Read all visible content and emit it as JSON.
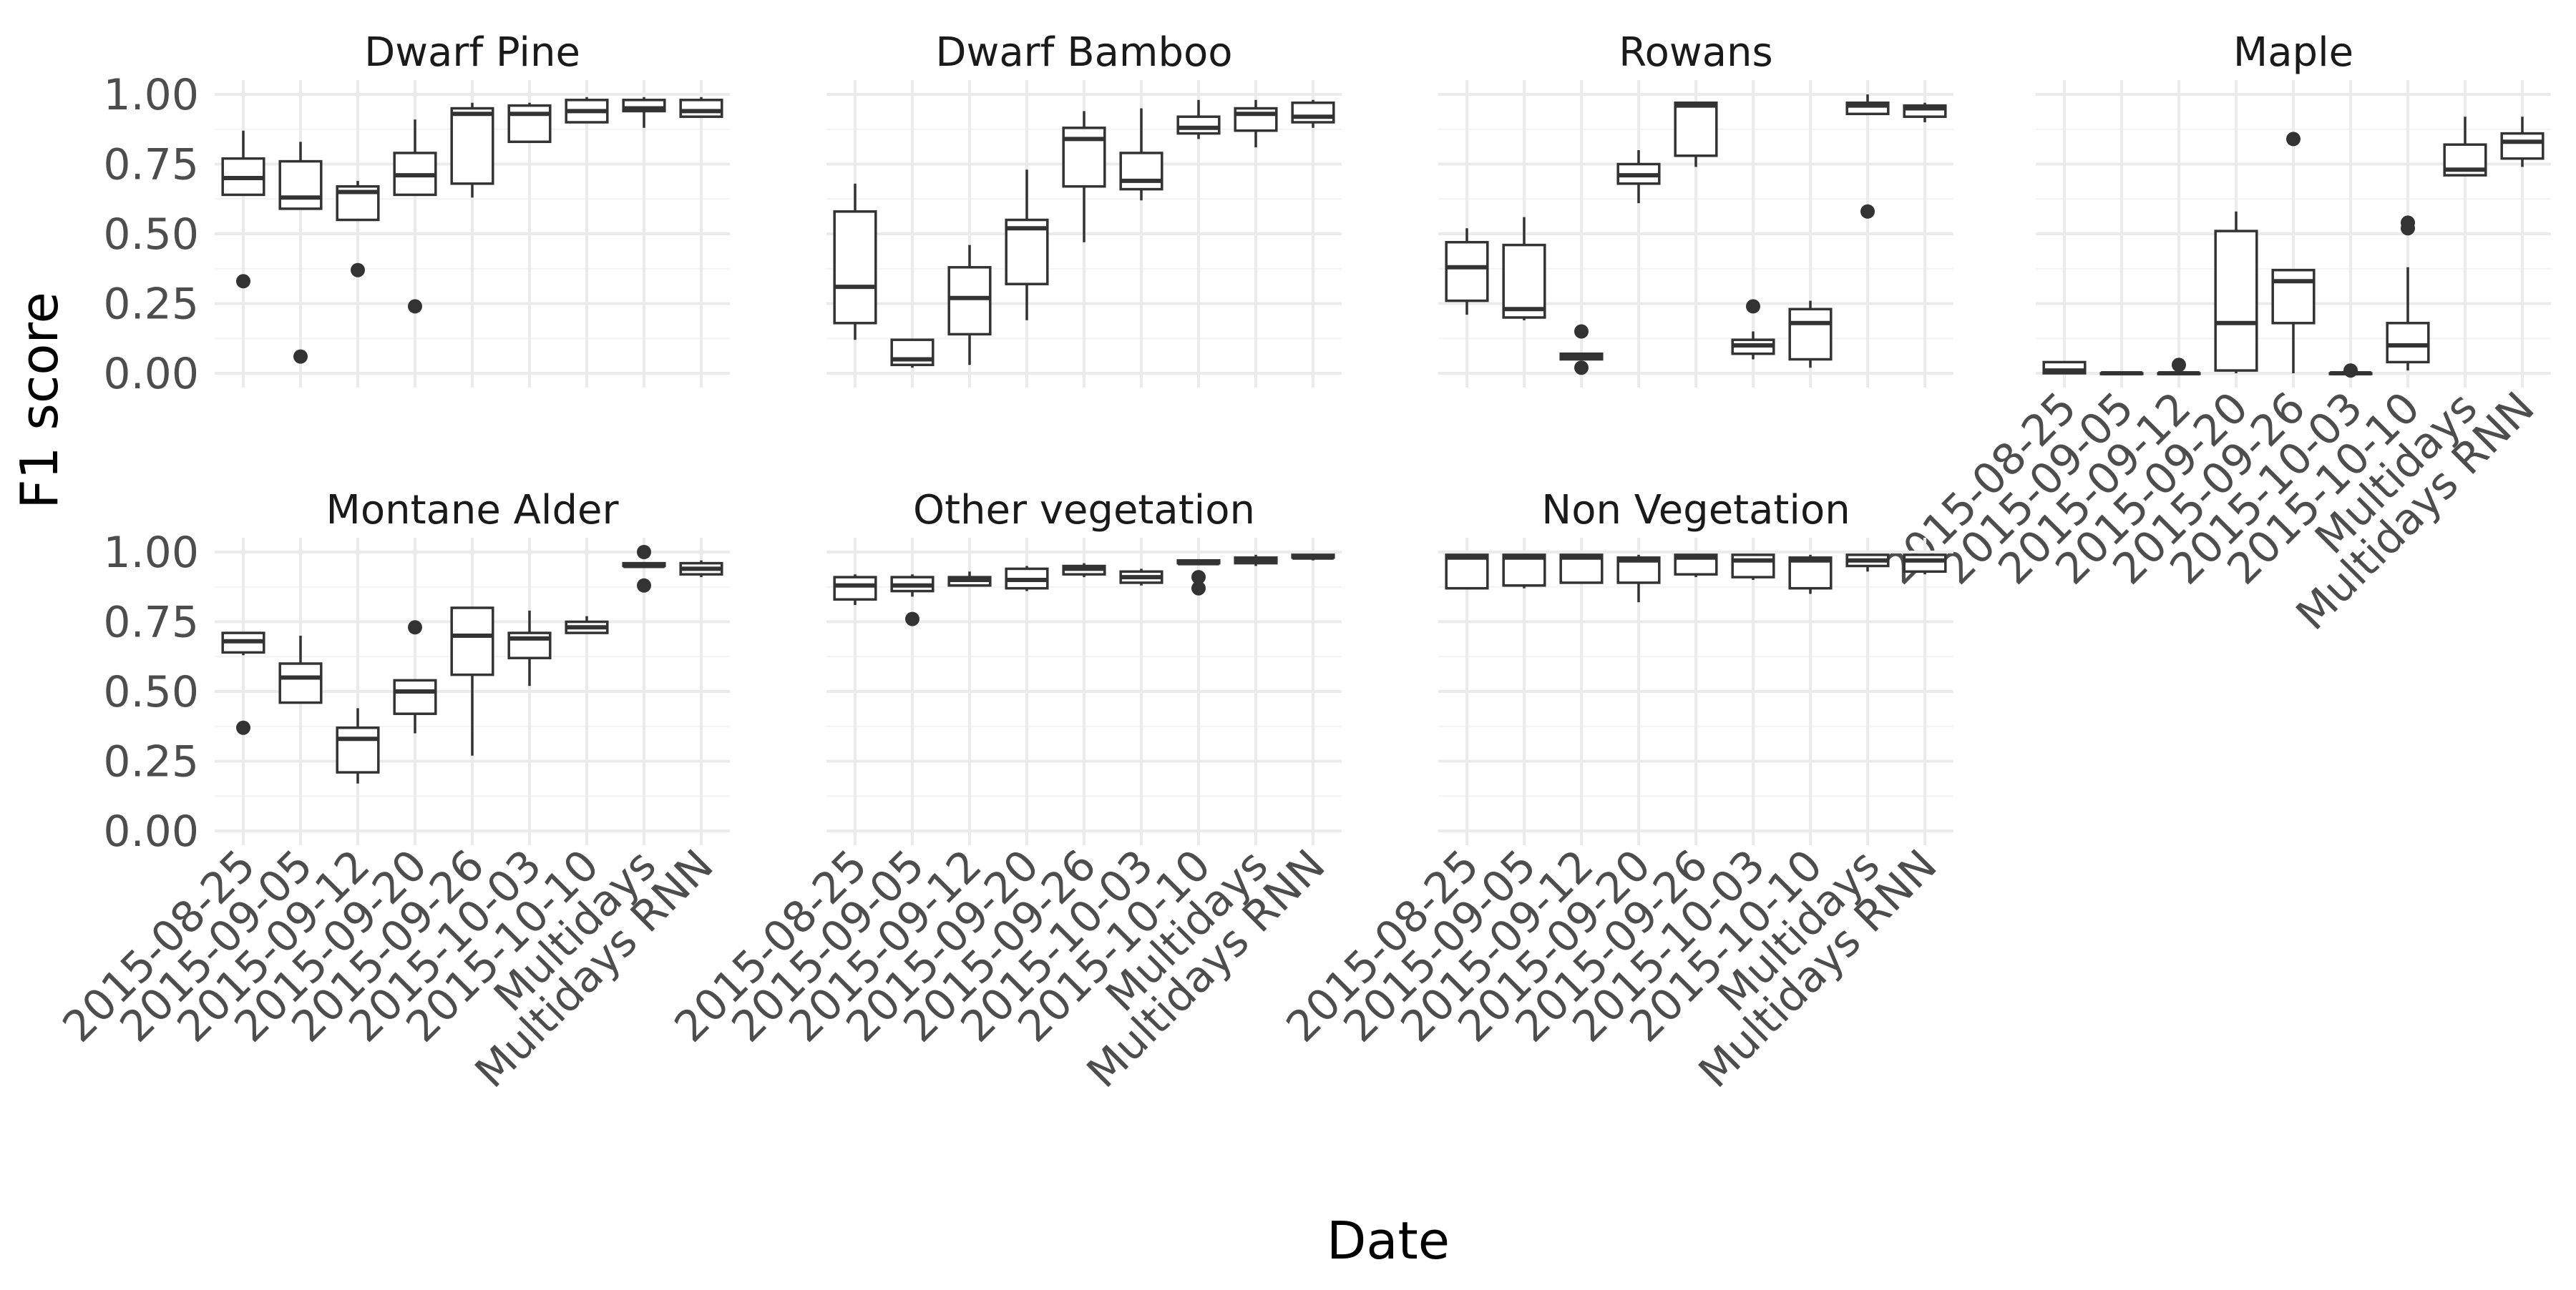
{
  "chart_data": {
    "type": "boxplot",
    "facet_layout": "4 columns x 2 rows",
    "xlabel": "Date",
    "ylabel": "F1 score",
    "ylim": [
      0,
      1
    ],
    "y_ticks": [
      "0.00",
      "0.25",
      "0.50",
      "0.75",
      "1.00"
    ],
    "y_tick_values": [
      0,
      0.25,
      0.5,
      0.75,
      1.0
    ],
    "categories": [
      "2015-08-25",
      "2015-09-05",
      "2015-09-12",
      "2015-09-20",
      "2015-09-26",
      "2015-10-03",
      "2015-10-10",
      "Multidays",
      "Multidays RNN"
    ],
    "grid": true,
    "legend": "none",
    "colors": {
      "box_line": "#333333",
      "box_fill": "#ffffff",
      "grid": "#ebebeb",
      "text": "#4d4d4d"
    },
    "facets": [
      {
        "title": "Dwarf Pine",
        "boxes": [
          {
            "min": 0.64,
            "q1": 0.64,
            "median": 0.7,
            "q3": 0.77,
            "max": 0.87,
            "outliers": [
              0.33
            ]
          },
          {
            "min": 0.59,
            "q1": 0.59,
            "median": 0.63,
            "q3": 0.76,
            "max": 0.83,
            "outliers": [
              0.06
            ]
          },
          {
            "min": 0.55,
            "q1": 0.55,
            "median": 0.65,
            "q3": 0.67,
            "max": 0.69,
            "outliers": [
              0.37
            ]
          },
          {
            "min": 0.64,
            "q1": 0.64,
            "median": 0.71,
            "q3": 0.79,
            "max": 0.91,
            "outliers": [
              0.24
            ]
          },
          {
            "min": 0.63,
            "q1": 0.68,
            "median": 0.93,
            "q3": 0.95,
            "max": 0.97,
            "outliers": []
          },
          {
            "min": 0.83,
            "q1": 0.83,
            "median": 0.93,
            "q3": 0.96,
            "max": 0.97,
            "outliers": []
          },
          {
            "min": 0.9,
            "q1": 0.9,
            "median": 0.94,
            "q3": 0.98,
            "max": 0.99,
            "outliers": []
          },
          {
            "min": 0.88,
            "q1": 0.94,
            "median": 0.95,
            "q3": 0.98,
            "max": 0.99,
            "outliers": []
          },
          {
            "min": 0.92,
            "q1": 0.92,
            "median": 0.94,
            "q3": 0.98,
            "max": 0.99,
            "outliers": []
          }
        ]
      },
      {
        "title": "Dwarf Bamboo",
        "boxes": [
          {
            "min": 0.12,
            "q1": 0.18,
            "median": 0.31,
            "q3": 0.58,
            "max": 0.68,
            "outliers": []
          },
          {
            "min": 0.02,
            "q1": 0.03,
            "median": 0.05,
            "q3": 0.12,
            "max": 0.12,
            "outliers": []
          },
          {
            "min": 0.03,
            "q1": 0.14,
            "median": 0.27,
            "q3": 0.38,
            "max": 0.46,
            "outliers": []
          },
          {
            "min": 0.19,
            "q1": 0.32,
            "median": 0.52,
            "q3": 0.55,
            "max": 0.73,
            "outliers": []
          },
          {
            "min": 0.47,
            "q1": 0.67,
            "median": 0.84,
            "q3": 0.88,
            "max": 0.94,
            "outliers": []
          },
          {
            "min": 0.62,
            "q1": 0.66,
            "median": 0.69,
            "q3": 0.79,
            "max": 0.95,
            "outliers": []
          },
          {
            "min": 0.84,
            "q1": 0.86,
            "median": 0.88,
            "q3": 0.92,
            "max": 0.98,
            "outliers": []
          },
          {
            "min": 0.81,
            "q1": 0.87,
            "median": 0.93,
            "q3": 0.95,
            "max": 0.98,
            "outliers": []
          },
          {
            "min": 0.88,
            "q1": 0.9,
            "median": 0.92,
            "q3": 0.97,
            "max": 0.98,
            "outliers": []
          }
        ]
      },
      {
        "title": "Rowans",
        "boxes": [
          {
            "min": 0.21,
            "q1": 0.26,
            "median": 0.38,
            "q3": 0.47,
            "max": 0.52,
            "outliers": []
          },
          {
            "min": 0.19,
            "q1": 0.2,
            "median": 0.23,
            "q3": 0.46,
            "max": 0.56,
            "outliers": []
          },
          {
            "min": 0.05,
            "q1": 0.05,
            "median": 0.06,
            "q3": 0.07,
            "max": 0.07,
            "outliers": [
              0.15,
              0.02
            ]
          },
          {
            "min": 0.61,
            "q1": 0.68,
            "median": 0.71,
            "q3": 0.75,
            "max": 0.8,
            "outliers": []
          },
          {
            "min": 0.74,
            "q1": 0.78,
            "median": 0.96,
            "q3": 0.97,
            "max": 0.97,
            "outliers": []
          },
          {
            "min": 0.05,
            "q1": 0.07,
            "median": 0.1,
            "q3": 0.12,
            "max": 0.15,
            "outliers": [
              0.24
            ]
          },
          {
            "min": 0.02,
            "q1": 0.05,
            "median": 0.18,
            "q3": 0.23,
            "max": 0.26,
            "outliers": []
          },
          {
            "min": 0.93,
            "q1": 0.93,
            "median": 0.96,
            "q3": 0.97,
            "max": 1.0,
            "outliers": [
              0.58
            ]
          },
          {
            "min": 0.9,
            "q1": 0.92,
            "median": 0.95,
            "q3": 0.96,
            "max": 0.97,
            "outliers": []
          }
        ]
      },
      {
        "title": "Maple",
        "boxes": [
          {
            "min": 0.0,
            "q1": 0.0,
            "median": 0.01,
            "q3": 0.04,
            "max": 0.04,
            "outliers": []
          },
          {
            "min": 0.0,
            "q1": 0.0,
            "median": 0.0,
            "q3": 0.0,
            "max": 0.0,
            "outliers": []
          },
          {
            "min": 0.0,
            "q1": 0.0,
            "median": 0.0,
            "q3": 0.0,
            "max": 0.0,
            "outliers": [
              0.03
            ]
          },
          {
            "min": 0.0,
            "q1": 0.01,
            "median": 0.18,
            "q3": 0.51,
            "max": 0.58,
            "outliers": []
          },
          {
            "min": 0.0,
            "q1": 0.18,
            "median": 0.33,
            "q3": 0.37,
            "max": 0.37,
            "outliers": [
              0.84
            ]
          },
          {
            "min": 0.0,
            "q1": 0.0,
            "median": 0.0,
            "q3": 0.0,
            "max": 0.0,
            "outliers": [
              0.01
            ]
          },
          {
            "min": 0.01,
            "q1": 0.04,
            "median": 0.1,
            "q3": 0.18,
            "max": 0.38,
            "outliers": [
              0.52,
              0.54
            ]
          },
          {
            "min": 0.71,
            "q1": 0.71,
            "median": 0.73,
            "q3": 0.82,
            "max": 0.92,
            "outliers": []
          },
          {
            "min": 0.74,
            "q1": 0.77,
            "median": 0.83,
            "q3": 0.86,
            "max": 0.92,
            "outliers": []
          }
        ]
      },
      {
        "title": "Montane Alder",
        "boxes": [
          {
            "min": 0.63,
            "q1": 0.64,
            "median": 0.68,
            "q3": 0.71,
            "max": 0.71,
            "outliers": [
              0.37
            ]
          },
          {
            "min": 0.46,
            "q1": 0.46,
            "median": 0.55,
            "q3": 0.6,
            "max": 0.7,
            "outliers": []
          },
          {
            "min": 0.17,
            "q1": 0.21,
            "median": 0.33,
            "q3": 0.37,
            "max": 0.44,
            "outliers": []
          },
          {
            "min": 0.35,
            "q1": 0.42,
            "median": 0.5,
            "q3": 0.54,
            "max": 0.54,
            "outliers": [
              0.73
            ]
          },
          {
            "min": 0.27,
            "q1": 0.56,
            "median": 0.7,
            "q3": 0.8,
            "max": 0.8,
            "outliers": []
          },
          {
            "min": 0.52,
            "q1": 0.62,
            "median": 0.69,
            "q3": 0.71,
            "max": 0.79,
            "outliers": []
          },
          {
            "min": 0.71,
            "q1": 0.71,
            "median": 0.73,
            "q3": 0.75,
            "max": 0.77,
            "outliers": []
          },
          {
            "min": 0.95,
            "q1": 0.95,
            "median": 0.95,
            "q3": 0.96,
            "max": 0.96,
            "outliers": [
              0.88,
              1.0
            ]
          },
          {
            "min": 0.91,
            "q1": 0.92,
            "median": 0.94,
            "q3": 0.96,
            "max": 0.97,
            "outliers": []
          }
        ]
      },
      {
        "title": "Other vegetation",
        "boxes": [
          {
            "min": 0.81,
            "q1": 0.83,
            "median": 0.88,
            "q3": 0.91,
            "max": 0.92,
            "outliers": []
          },
          {
            "min": 0.84,
            "q1": 0.86,
            "median": 0.88,
            "q3": 0.91,
            "max": 0.92,
            "outliers": [
              0.76
            ]
          },
          {
            "min": 0.88,
            "q1": 0.88,
            "median": 0.9,
            "q3": 0.91,
            "max": 0.93,
            "outliers": []
          },
          {
            "min": 0.86,
            "q1": 0.87,
            "median": 0.9,
            "q3": 0.94,
            "max": 0.95,
            "outliers": []
          },
          {
            "min": 0.91,
            "q1": 0.92,
            "median": 0.94,
            "q3": 0.95,
            "max": 0.96,
            "outliers": []
          },
          {
            "min": 0.88,
            "q1": 0.89,
            "median": 0.91,
            "q3": 0.93,
            "max": 0.94,
            "outliers": []
          },
          {
            "min": 0.96,
            "q1": 0.96,
            "median": 0.96,
            "q3": 0.97,
            "max": 0.97,
            "outliers": [
              0.87,
              0.91
            ]
          },
          {
            "min": 0.95,
            "q1": 0.96,
            "median": 0.97,
            "q3": 0.98,
            "max": 0.99,
            "outliers": []
          },
          {
            "min": 0.97,
            "q1": 0.98,
            "median": 0.98,
            "q3": 0.99,
            "max": 0.99,
            "outliers": []
          }
        ]
      },
      {
        "title": "Non Vegetation",
        "boxes": [
          {
            "min": 0.87,
            "q1": 0.87,
            "median": 0.98,
            "q3": 0.99,
            "max": 0.99,
            "outliers": []
          },
          {
            "min": 0.87,
            "q1": 0.88,
            "median": 0.98,
            "q3": 0.99,
            "max": 0.99,
            "outliers": []
          },
          {
            "min": 0.89,
            "q1": 0.89,
            "median": 0.98,
            "q3": 0.99,
            "max": 0.99,
            "outliers": []
          },
          {
            "min": 0.82,
            "q1": 0.89,
            "median": 0.97,
            "q3": 0.98,
            "max": 0.99,
            "outliers": []
          },
          {
            "min": 0.91,
            "q1": 0.92,
            "median": 0.98,
            "q3": 0.99,
            "max": 0.99,
            "outliers": []
          },
          {
            "min": 0.9,
            "q1": 0.91,
            "median": 0.97,
            "q3": 0.99,
            "max": 0.99,
            "outliers": []
          },
          {
            "min": 0.85,
            "q1": 0.87,
            "median": 0.97,
            "q3": 0.98,
            "max": 0.99,
            "outliers": []
          },
          {
            "min": 0.93,
            "q1": 0.95,
            "median": 0.97,
            "q3": 0.99,
            "max": 0.99,
            "outliers": []
          },
          {
            "min": 0.92,
            "q1": 0.93,
            "median": 0.97,
            "q3": 0.99,
            "max": 0.99,
            "outliers": []
          }
        ]
      }
    ]
  }
}
